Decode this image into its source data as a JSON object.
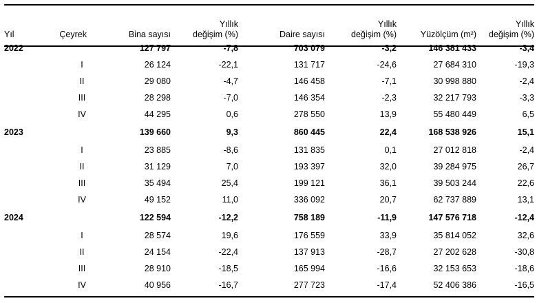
{
  "headers": {
    "year": "Yıl",
    "quarter": "Çeyrek",
    "buildings": "Bina sayısı",
    "buildings_change_l1": "Yıllık",
    "buildings_change_l2": "değişim (%)",
    "dwellings": "Daire sayısı",
    "dwellings_change_l1": "Yıllık",
    "dwellings_change_l2": "değişim (%)",
    "area": "Yüzölçüm (m²)",
    "area_change_l1": "Yıllık",
    "area_change_l2": "değişim (%)"
  },
  "rows": [
    {
      "year": "2022",
      "quarter": "",
      "buildings": "127 797",
      "b_chg": "-7,8",
      "dwellings": "703 079",
      "d_chg": "-3,2",
      "area": "146 381 433",
      "a_chg": "-3,4"
    },
    {
      "year": "",
      "quarter": "I",
      "buildings": "26 124",
      "b_chg": "-22,1",
      "dwellings": "131 717",
      "d_chg": "-24,6",
      "area": "27 684 310",
      "a_chg": "-19,3"
    },
    {
      "year": "",
      "quarter": "II",
      "buildings": "29 080",
      "b_chg": "-4,7",
      "dwellings": "146 458",
      "d_chg": "-7,1",
      "area": "30 998 880",
      "a_chg": "-2,4"
    },
    {
      "year": "",
      "quarter": "III",
      "buildings": "28 298",
      "b_chg": "-7,0",
      "dwellings": "146 354",
      "d_chg": "-2,3",
      "area": "32 217 793",
      "a_chg": "-3,3"
    },
    {
      "year": "",
      "quarter": "IV",
      "buildings": "44 295",
      "b_chg": "0,6",
      "dwellings": "278 550",
      "d_chg": "13,9",
      "area": "55 480 449",
      "a_chg": "6,5"
    },
    {
      "year": "2023",
      "quarter": "",
      "buildings": "139 660",
      "b_chg": "9,3",
      "dwellings": "860 445",
      "d_chg": "22,4",
      "area": "168 538 926",
      "a_chg": "15,1"
    },
    {
      "year": "",
      "quarter": "I",
      "buildings": "23 885",
      "b_chg": "-8,6",
      "dwellings": "131 835",
      "d_chg": "0,1",
      "area": "27 012 818",
      "a_chg": "-2,4"
    },
    {
      "year": "",
      "quarter": "II",
      "buildings": "31 129",
      "b_chg": "7,0",
      "dwellings": "193 397",
      "d_chg": "32,0",
      "area": "39 284 975",
      "a_chg": "26,7"
    },
    {
      "year": "",
      "quarter": "III",
      "buildings": "35 494",
      "b_chg": "25,4",
      "dwellings": "199 121",
      "d_chg": "36,1",
      "area": "39 503 244",
      "a_chg": "22,6"
    },
    {
      "year": "",
      "quarter": "IV",
      "buildings": "49 152",
      "b_chg": "11,0",
      "dwellings": "336 092",
      "d_chg": "20,7",
      "area": "62 737 889",
      "a_chg": "13,1"
    },
    {
      "year": "2024",
      "quarter": "",
      "buildings": "122 594",
      "b_chg": "-12,2",
      "dwellings": "758 189",
      "d_chg": "-11,9",
      "area": "147 576 718",
      "a_chg": "-12,4"
    },
    {
      "year": "",
      "quarter": "I",
      "buildings": "28 574",
      "b_chg": "19,6",
      "dwellings": "176 559",
      "d_chg": "33,9",
      "area": "35 814 052",
      "a_chg": "32,6"
    },
    {
      "year": "",
      "quarter": "II",
      "buildings": "24 154",
      "b_chg": "-22,4",
      "dwellings": "137 913",
      "d_chg": "-28,7",
      "area": "27 202 628",
      "a_chg": "-30,8"
    },
    {
      "year": "",
      "quarter": "III",
      "buildings": "28 910",
      "b_chg": "-18,5",
      "dwellings": "165 994",
      "d_chg": "-16,6",
      "area": "32 153 653",
      "a_chg": "-18,6"
    },
    {
      "year": "",
      "quarter": "IV",
      "buildings": "40 956",
      "b_chg": "-16,7",
      "dwellings": "277 723",
      "d_chg": "-17,4",
      "area": "52 406 386",
      "a_chg": "-16,5"
    }
  ]
}
